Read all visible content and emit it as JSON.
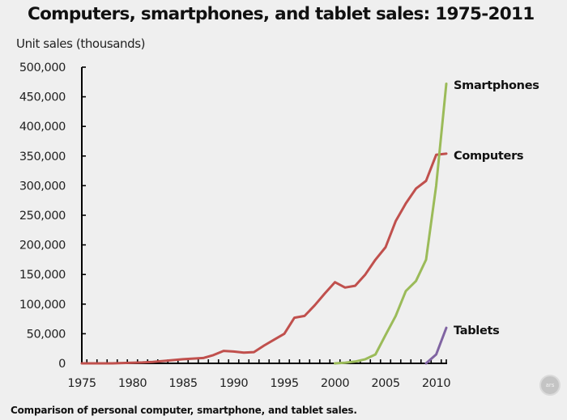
{
  "chart_data": {
    "type": "line",
    "title": "Computers, smartphones, and tablet sales:  1975-2011",
    "ylabel": "Unit sales (thousands)",
    "xlabel": "",
    "xlim": [
      1975,
      2011
    ],
    "ylim": [
      0,
      500000
    ],
    "xticks": [
      1975,
      1980,
      1985,
      1990,
      1995,
      2000,
      2005,
      2010
    ],
    "xtick_labels": [
      "1975",
      "1980",
      "1985",
      "1990",
      "1995",
      "2000",
      "2005",
      "2010"
    ],
    "yticks": [
      0,
      50000,
      100000,
      150000,
      200000,
      250000,
      300000,
      350000,
      400000,
      450000,
      500000
    ],
    "ytick_labels": [
      "0",
      "50,000",
      "100,000",
      "150,000",
      "200,000",
      "250,000",
      "300,000",
      "350,000",
      "400,000",
      "450,000",
      "500,000"
    ],
    "grid": false,
    "legend": "direct-labels-right",
    "series": [
      {
        "name": "Computers",
        "color": "#c0504d",
        "x": [
          1975,
          1976,
          1977,
          1978,
          1979,
          1980,
          1981,
          1982,
          1983,
          1984,
          1985,
          1986,
          1987,
          1988,
          1989,
          1990,
          1991,
          1992,
          1993,
          1994,
          1995,
          1996,
          1997,
          1998,
          1999,
          2000,
          2001,
          2002,
          2003,
          2004,
          2005,
          2006,
          2007,
          2008,
          2009,
          2010,
          2011
        ],
        "values": [
          0,
          0,
          0,
          0,
          500,
          1000,
          1500,
          2500,
          4000,
          5500,
          7000,
          8000,
          9000,
          14000,
          21000,
          20000,
          18000,
          19000,
          30000,
          40000,
          50000,
          77000,
          80000,
          98000,
          118000,
          137000,
          128000,
          131000,
          150000,
          175000,
          196000,
          240000,
          270000,
          295000,
          308000,
          352000,
          354000
        ]
      },
      {
        "name": "Smartphones",
        "color": "#9bbb59",
        "x": [
          2000,
          2001,
          2002,
          2003,
          2004,
          2005,
          2006,
          2007,
          2008,
          2009,
          2010,
          2011
        ],
        "values": [
          0,
          1000,
          3000,
          7000,
          15000,
          48000,
          80000,
          122000,
          139000,
          175000,
          300000,
          472000
        ]
      },
      {
        "name": "Tablets",
        "color": "#8064a2",
        "x": [
          2009,
          2010,
          2011
        ],
        "values": [
          0,
          15000,
          60000
        ]
      }
    ]
  },
  "caption": "Comparison of personal computer, smartphone, and tablet sales.",
  "logo": {
    "icon": "ars-logo-icon",
    "text": "ars"
  }
}
